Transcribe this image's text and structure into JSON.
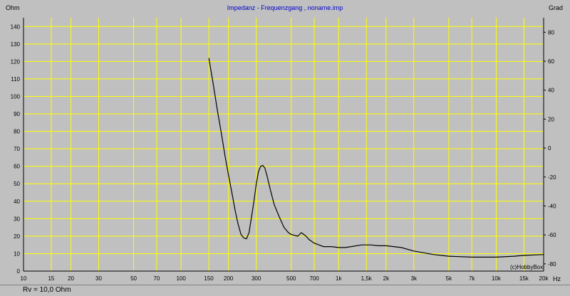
{
  "chart_data": {
    "type": "line",
    "title": "Impedanz - Frequenzgang , noname.imp",
    "ylabel": "Ohm",
    "y2label": "Grad",
    "xlabel": "Hz",
    "xscale": "log",
    "xlim": [
      10,
      20000
    ],
    "ylim": [
      0,
      145
    ],
    "y2lim": [
      -85,
      90
    ],
    "y_ticks": [
      "0",
      "10",
      "20",
      "30",
      "40",
      "50",
      "60",
      "70",
      "80",
      "90",
      "100",
      "110",
      "120",
      "130",
      "140"
    ],
    "y2_ticks": [
      "-80",
      "-60",
      "-40",
      "-20",
      "0",
      "20",
      "40",
      "60",
      "80"
    ],
    "x_ticks": [
      {
        "value": 10,
        "label": "10"
      },
      {
        "value": 15,
        "label": "15"
      },
      {
        "value": 20,
        "label": "20"
      },
      {
        "value": 30,
        "label": "30"
      },
      {
        "value": 50,
        "label": "50"
      },
      {
        "value": 70,
        "label": "70"
      },
      {
        "value": 100,
        "label": "100"
      },
      {
        "value": 150,
        "label": "150"
      },
      {
        "value": 200,
        "label": "200"
      },
      {
        "value": 300,
        "label": "300"
      },
      {
        "value": 500,
        "label": "500"
      },
      {
        "value": 700,
        "label": "700"
      },
      {
        "value": 1000,
        "label": "1k"
      },
      {
        "value": 1500,
        "label": "1,5k"
      },
      {
        "value": 2000,
        "label": "2k"
      },
      {
        "value": 3000,
        "label": "3k"
      },
      {
        "value": 5000,
        "label": "5k"
      },
      {
        "value": 7000,
        "label": "7k"
      },
      {
        "value": 10000,
        "label": "10k"
      },
      {
        "value": 15000,
        "label": "15k"
      },
      {
        "value": 20000,
        "label": "20k"
      }
    ],
    "grid": true,
    "series": [
      {
        "x": [
          150,
          160,
          170,
          180,
          190,
          200,
          210,
          220,
          230,
          240,
          250,
          260,
          270,
          280,
          290,
          300,
          310,
          320,
          330,
          340,
          350,
          370,
          390,
          420,
          450,
          480,
          500,
          550,
          580,
          600,
          620,
          650,
          700,
          750,
          800,
          900,
          1000,
          1100,
          1200,
          1400,
          1600,
          1800,
          2000,
          2500,
          3000,
          4000,
          5000,
          7000,
          10000,
          13000,
          15000,
          20000
        ],
        "y": [
          122,
          107,
          92,
          79,
          66,
          55,
          45,
          35,
          27,
          21,
          19,
          18.5,
          22,
          31,
          40,
          50,
          57,
          60,
          60.5,
          59,
          55,
          46,
          38,
          31,
          25,
          22,
          21,
          20,
          22,
          21,
          20,
          18,
          16,
          15,
          14,
          14,
          13.5,
          13.5,
          14,
          15,
          15,
          14.5,
          14.5,
          13.5,
          11.5,
          9.5,
          8.5,
          8,
          8,
          8.5,
          9,
          9.5
        ],
        "color": "#000000"
      }
    ],
    "annotation": "(c)HobbyBox"
  },
  "status": {
    "text": "Rv = 10,0 Ohm"
  },
  "colors": {
    "background": "#c0c0c0",
    "grid": "#ffff00",
    "title": "#0000cc"
  }
}
